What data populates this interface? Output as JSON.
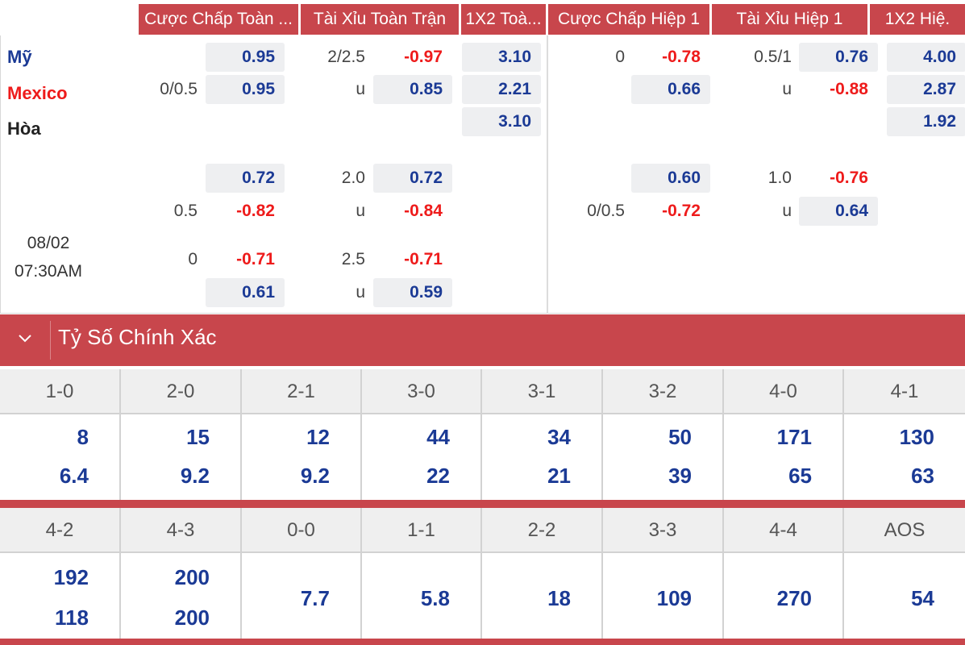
{
  "header": {
    "columns": [
      "Cược Chấp Toàn ...",
      "Tài Xỉu Toàn Trận",
      "1X2 Toà...",
      "Cược Chấp Hiệp 1",
      "Tài Xỉu Hiệp 1",
      "1X2 Hiệ."
    ]
  },
  "teams": {
    "home": "Mỹ",
    "away": "Mexico",
    "draw": "Hòa"
  },
  "match": {
    "date": "08/02",
    "time": "07:30AM"
  },
  "odds": {
    "ft_hdp": [
      {
        "line": "",
        "home": "0.95",
        "away": "0.95",
        "away_line": "0/0.5"
      },
      {
        "line": "",
        "home": "0.72",
        "away": "-0.82",
        "away_line": "0.5"
      },
      {
        "line": "0",
        "home": "-0.71",
        "away": "0.61",
        "away_line": ""
      }
    ],
    "ft_ou": [
      {
        "line": "2/2.5",
        "over": "-0.97",
        "u": "u",
        "under": "0.85"
      },
      {
        "line": "2.0",
        "over": "0.72",
        "u": "u",
        "under": "-0.84"
      },
      {
        "line": "2.5",
        "over": "-0.71",
        "u": "u",
        "under": "0.59"
      }
    ],
    "ft_1x2": {
      "home": "3.10",
      "away": "2.21",
      "draw": "3.10"
    },
    "h1_hdp": [
      {
        "line": "0",
        "home": "-0.78",
        "away": "0.66"
      },
      {
        "line": "",
        "home": "0.60",
        "away": "-0.72",
        "away_line": "0/0.5"
      }
    ],
    "h1_ou": [
      {
        "line": "0.5/1",
        "over": "0.76",
        "u": "u",
        "under": "-0.88"
      },
      {
        "line": "1.0",
        "over": "-0.76",
        "u": "u",
        "under": "0.64"
      }
    ],
    "h1_1x2": {
      "home": "4.00",
      "away": "2.87",
      "draw": "1.92"
    }
  },
  "section": {
    "title": "Tỷ Số Chính Xác"
  },
  "correct_score": {
    "row1": [
      {
        "score": "1-0",
        "a": "8",
        "b": "6.4"
      },
      {
        "score": "2-0",
        "a": "15",
        "b": "9.2"
      },
      {
        "score": "2-1",
        "a": "12",
        "b": "9.2"
      },
      {
        "score": "3-0",
        "a": "44",
        "b": "22"
      },
      {
        "score": "3-1",
        "a": "34",
        "b": "21"
      },
      {
        "score": "3-2",
        "a": "50",
        "b": "39"
      },
      {
        "score": "4-0",
        "a": "171",
        "b": "65"
      },
      {
        "score": "4-1",
        "a": "130",
        "b": "63"
      }
    ],
    "row2": [
      {
        "score": "4-2",
        "a": "192",
        "b": "118"
      },
      {
        "score": "4-3",
        "a": "200",
        "b": "200"
      },
      {
        "score": "0-0",
        "a": "7.7"
      },
      {
        "score": "1-1",
        "a": "5.8"
      },
      {
        "score": "2-2",
        "a": "18"
      },
      {
        "score": "3-3",
        "a": "109"
      },
      {
        "score": "4-4",
        "a": "270"
      },
      {
        "score": "AOS",
        "a": "54"
      }
    ]
  },
  "colors": {
    "accent": "#c8464c",
    "odd_blue": "#1b3a95",
    "odd_red": "#ee1b1b"
  }
}
